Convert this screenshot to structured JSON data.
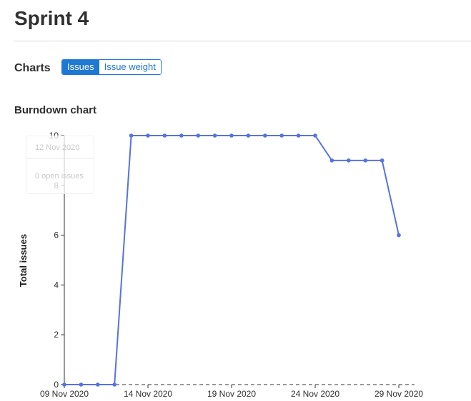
{
  "page": {
    "title": "Sprint 4",
    "charts_label": "Charts",
    "toggle": {
      "issues_label": "Issues",
      "weight_label": "Issue weight",
      "active": "issues"
    },
    "section_title": "Burndown chart"
  },
  "tooltip": {
    "title": "12 Nov 2020",
    "body": "0 open issues"
  },
  "colors": {
    "line": "#5772e0",
    "dashed": "#303030",
    "axis": "#303030",
    "toggle_active": "#1f78d1"
  },
  "chart_data": {
    "type": "line",
    "title": "Burndown chart",
    "xlabel": "",
    "ylabel": "Total issues",
    "x_tick_labels": [
      "09 Nov 2020",
      "14 Nov 2020",
      "19 Nov 2020",
      "24 Nov 2020",
      "29 Nov 2020"
    ],
    "y_ticks": [
      0,
      2,
      4,
      6,
      8,
      10
    ],
    "ylim": [
      0,
      10
    ],
    "x": [
      "09 Nov 2020",
      "10 Nov 2020",
      "11 Nov 2020",
      "12 Nov 2020",
      "13 Nov 2020",
      "14 Nov 2020",
      "15 Nov 2020",
      "16 Nov 2020",
      "17 Nov 2020",
      "18 Nov 2020",
      "19 Nov 2020",
      "20 Nov 2020",
      "21 Nov 2020",
      "22 Nov 2020",
      "23 Nov 2020",
      "24 Nov 2020",
      "25 Nov 2020",
      "26 Nov 2020",
      "27 Nov 2020",
      "28 Nov 2020",
      "29 Nov 2020"
    ],
    "series": [
      {
        "values": [
          0,
          0,
          0,
          0,
          10,
          10,
          10,
          10,
          10,
          10,
          10,
          10,
          10,
          10,
          10,
          10,
          9,
          9,
          9,
          9,
          6
        ]
      }
    ],
    "dashed_baseline": true,
    "grid": false
  }
}
